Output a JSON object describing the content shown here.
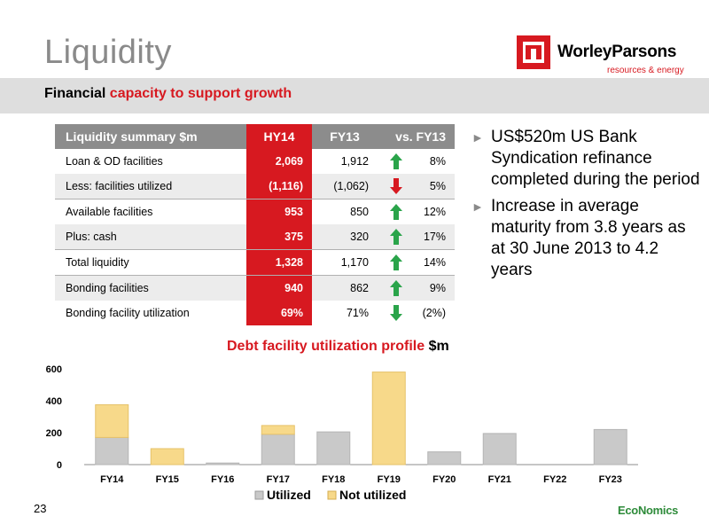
{
  "slide": {
    "title": "Liquidity",
    "subtitle_black": "Financial ",
    "subtitle_red": "capacity to support growth",
    "page_number": "23"
  },
  "logo": {
    "name": "WorleyParsons",
    "tagline": "resources & energy"
  },
  "footer": {
    "brand": "EcoNomics"
  },
  "colors": {
    "accent_red": "#d71920",
    "header_gray": "#8c8c8c",
    "up_green": "#2aa44a",
    "down_red": "#d71920",
    "utilized": "#c9c9c9",
    "not_utilized": "#f7d98a"
  },
  "table": {
    "headers": [
      "Liquidity summary $m",
      "HY14",
      "FY13",
      "vs. FY13"
    ],
    "rows": [
      {
        "label": "Loan & OD facilities",
        "hy14": "2,069",
        "fy13": "1,912",
        "arrow": "up",
        "change": "8%"
      },
      {
        "label": "Less: facilities utilized",
        "hy14": "(1,116)",
        "fy13": "(1,062)",
        "arrow": "down",
        "change": "5%"
      },
      {
        "label": "Available facilities",
        "hy14": "953",
        "fy13": "850",
        "arrow": "up",
        "change": "12%"
      },
      {
        "label": "Plus: cash",
        "hy14": "375",
        "fy13": "320",
        "arrow": "up",
        "change": "17%"
      },
      {
        "label": "Total liquidity",
        "hy14": "1,328",
        "fy13": "1,170",
        "arrow": "up",
        "change": "14%"
      },
      {
        "label": "Bonding facilities",
        "hy14": "940",
        "fy13": "862",
        "arrow": "up",
        "change": "9%"
      },
      {
        "label": "Bonding facility utilization",
        "hy14": "69%",
        "fy13": "71%",
        "arrow": "down_green",
        "change": "(2%)"
      }
    ]
  },
  "bullets": [
    "US$520m US Bank Syndication refinance completed during the period",
    "Increase in average maturity from 3.8 years as at 30 June 2013 to 4.2 years"
  ],
  "bullet_marker": "►",
  "chart_data": {
    "type": "bar",
    "stacked": true,
    "title": "Debt facility utilization profile",
    "title_unit": "$m",
    "categories": [
      "FY14",
      "FY15",
      "FY16",
      "FY17",
      "FY18",
      "FY19",
      "FY20",
      "FY21",
      "FY22",
      "FY23"
    ],
    "series": [
      {
        "name": "Utilized",
        "values": [
          170,
          0,
          10,
          190,
          205,
          0,
          80,
          195,
          0,
          220
        ]
      },
      {
        "name": "Not utilized",
        "values": [
          205,
          100,
          0,
          55,
          0,
          580,
          0,
          0,
          0,
          0
        ]
      }
    ],
    "yticks": [
      "0",
      "200",
      "400",
      "600"
    ],
    "ylim": [
      0,
      650
    ],
    "legend_position": "bottom",
    "grid": false
  }
}
